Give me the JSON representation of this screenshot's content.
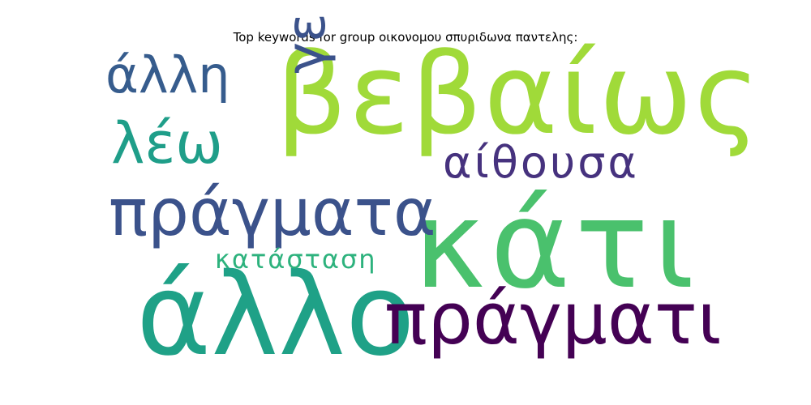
{
  "title": "Top keywords for group οικονομου σπυριδωνα παντελης:",
  "words": {
    "vevaios": {
      "text": "βεβαίως",
      "color": "#a0da39"
    },
    "kati": {
      "text": "κάτι",
      "color": "#4ac16d"
    },
    "allo": {
      "text": "άλλο",
      "color": "#1fa187"
    },
    "pragmati": {
      "text": "πράγματι",
      "color": "#440154"
    },
    "pragmata": {
      "text": "πράγματα",
      "color": "#3b528b"
    },
    "aithousa": {
      "text": "αίθουσα",
      "color": "#46327e"
    },
    "alli": {
      "text": "άλλη",
      "color": "#365c8d"
    },
    "leo": {
      "text": "λέω",
      "color": "#1f9e89"
    },
    "katastasi": {
      "text": "κατάσταση",
      "color": "#2db27d"
    },
    "ge": {
      "text": "γε",
      "color": "#3b528b"
    }
  }
}
